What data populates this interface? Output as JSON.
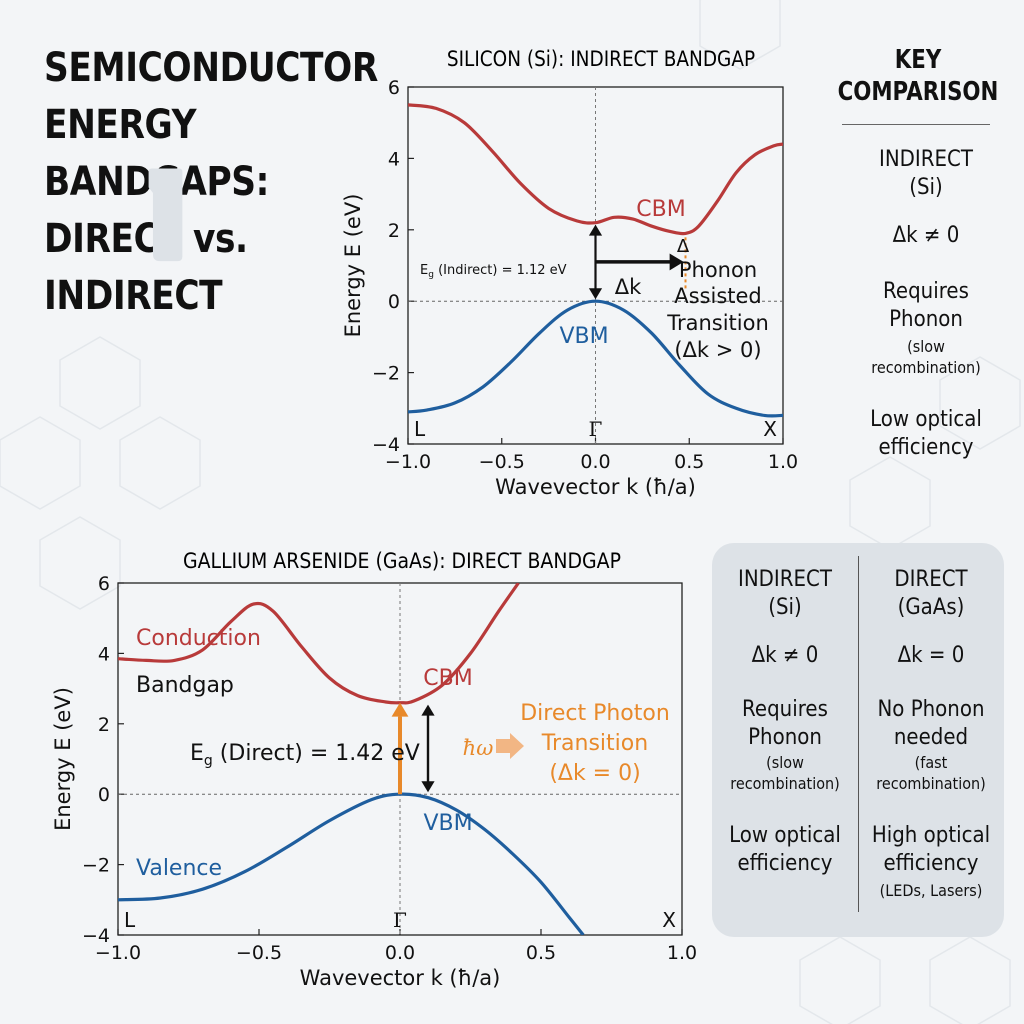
{
  "title_lines": [
    "SEMICONDUCTOR",
    "ENERGY",
    "BANDGAPS:",
    "DIRECT vs.",
    "INDIRECT"
  ],
  "colors": {
    "conduction": "#b83a3a",
    "valence": "#1f5e9e",
    "photon": "#e8892a",
    "panel": "#dde2e7",
    "background": "#f3f5f7"
  },
  "chart_data": [
    {
      "type": "line",
      "title": "SILICON (Si): INDIRECT BANDGAP",
      "xlabel": "Wavevector k (ħ/a)",
      "ylabel": "Energy E (eV)",
      "xlim": [
        -1.0,
        1.0
      ],
      "ylim": [
        -4,
        6
      ],
      "x_ticks": [
        "−1.0",
        "−0.5",
        "0.0",
        "0.5",
        "1.0"
      ],
      "y_ticks": [
        "−4",
        "−2",
        "0",
        "2",
        "4",
        "6"
      ],
      "grid": false,
      "symmetry_points": [
        "L",
        "Γ",
        "X"
      ],
      "series": [
        {
          "role": "conduction",
          "x": [
            -1.0,
            -0.85,
            -0.7,
            -0.55,
            -0.4,
            -0.25,
            -0.1,
            0.0,
            0.1,
            0.2,
            0.3,
            0.4,
            0.48,
            0.55,
            0.65,
            0.75,
            0.85,
            0.95,
            1.0
          ],
          "y": [
            5.5,
            5.4,
            5.0,
            4.2,
            3.3,
            2.6,
            2.25,
            2.2,
            2.35,
            2.3,
            2.1,
            1.95,
            1.9,
            2.1,
            2.8,
            3.6,
            4.1,
            4.35,
            4.4
          ]
        },
        {
          "role": "valence",
          "x": [
            -1.0,
            -0.9,
            -0.75,
            -0.6,
            -0.45,
            -0.3,
            -0.15,
            0.0,
            0.15,
            0.3,
            0.45,
            0.6,
            0.75,
            0.9,
            1.0
          ],
          "y": [
            -3.1,
            -3.05,
            -2.85,
            -2.4,
            -1.7,
            -0.9,
            -0.25,
            0.0,
            -0.25,
            -0.9,
            -1.8,
            -2.6,
            -3.0,
            -3.2,
            -3.2
          ]
        }
      ],
      "annotations": {
        "cbm": "CBM",
        "vbm": "VBM",
        "eg_prefix": "E",
        "eg_sub": "g",
        "eg_rest": " (Indirect) = 1.12 eV",
        "dk": "Δk",
        "phonon_lines": [
          "Δ",
          "Phonon",
          "Assisted",
          "Transition",
          "(Δk > 0)"
        ]
      }
    },
    {
      "type": "line",
      "title": "GALLIUM ARSENIDE (GaAs): DIRECT BANDGAP",
      "xlabel": "Wavevector k (ħ/a)",
      "ylabel": "Energy E (eV)",
      "xlim": [
        -1.0,
        1.0
      ],
      "ylim": [
        -4,
        6
      ],
      "x_ticks": [
        "−1.0",
        "−0.5",
        "0.0",
        "0.5",
        "1.0"
      ],
      "y_ticks": [
        "−4",
        "−2",
        "0",
        "2",
        "4",
        "6"
      ],
      "grid": false,
      "symmetry_points": [
        "L",
        "Γ",
        "X"
      ],
      "series": [
        {
          "role": "conduction",
          "x": [
            -1.0,
            -0.9,
            -0.8,
            -0.7,
            -0.6,
            -0.52,
            -0.45,
            -0.35,
            -0.25,
            -0.15,
            -0.05,
            0.0,
            0.05,
            0.15,
            0.25,
            0.35,
            0.42
          ],
          "y": [
            3.85,
            3.8,
            3.8,
            4.1,
            4.9,
            5.4,
            5.2,
            4.2,
            3.3,
            2.8,
            2.62,
            2.6,
            2.65,
            3.1,
            4.0,
            5.2,
            6.0
          ]
        },
        {
          "role": "valence",
          "x": [
            -1.0,
            -0.85,
            -0.7,
            -0.55,
            -0.4,
            -0.25,
            -0.1,
            0.0,
            0.1,
            0.2,
            0.3,
            0.4,
            0.5,
            0.6,
            0.65
          ],
          "y": [
            -3.0,
            -2.95,
            -2.7,
            -2.2,
            -1.5,
            -0.75,
            -0.15,
            0.0,
            -0.1,
            -0.45,
            -1.0,
            -1.7,
            -2.5,
            -3.5,
            -4.0
          ]
        }
      ],
      "annotations": {
        "conduction_label": "Conduction",
        "bandgap_label": "Bandgap",
        "valence_label": "Valence",
        "cbm": "CBM",
        "vbm": "VBM",
        "eg_prefix": "E",
        "eg_sub": "g",
        "eg_rest": " (Direct) = 1.42 eV",
        "hw": "ħω",
        "photon_lines": [
          "Direct Photon",
          "Transition",
          "(Δk = 0)"
        ]
      }
    }
  ],
  "key_comparison": {
    "title_lines": [
      "KEY",
      "COMPARISON"
    ],
    "indirect_heading": [
      "INDIRECT",
      "(Si)"
    ],
    "indirect_dk": "Δk ≠ 0",
    "indirect_phonon": [
      "Requires",
      "Phonon"
    ],
    "indirect_phonon_note": [
      "(slow",
      "recombination)"
    ],
    "indirect_efficiency": [
      "Low optical",
      "efficiency"
    ]
  },
  "comparison_table": {
    "indirect": {
      "heading": [
        "INDIRECT",
        "(Si)"
      ],
      "dk": "Δk ≠ 0",
      "phonon": [
        "Requires",
        "Phonon"
      ],
      "note": [
        "(slow",
        "recombination)"
      ],
      "efficiency": [
        "Low optical",
        "efficiency"
      ]
    },
    "direct": {
      "heading": [
        "DIRECT",
        "(GaAs)"
      ],
      "dk": "Δk = 0",
      "phonon": [
        "No Phonon",
        "needed"
      ],
      "note": [
        "(fast",
        "recombination)"
      ],
      "efficiency": [
        "High optical",
        "efficiency"
      ],
      "applications": "(LEDs, Lasers)"
    }
  }
}
